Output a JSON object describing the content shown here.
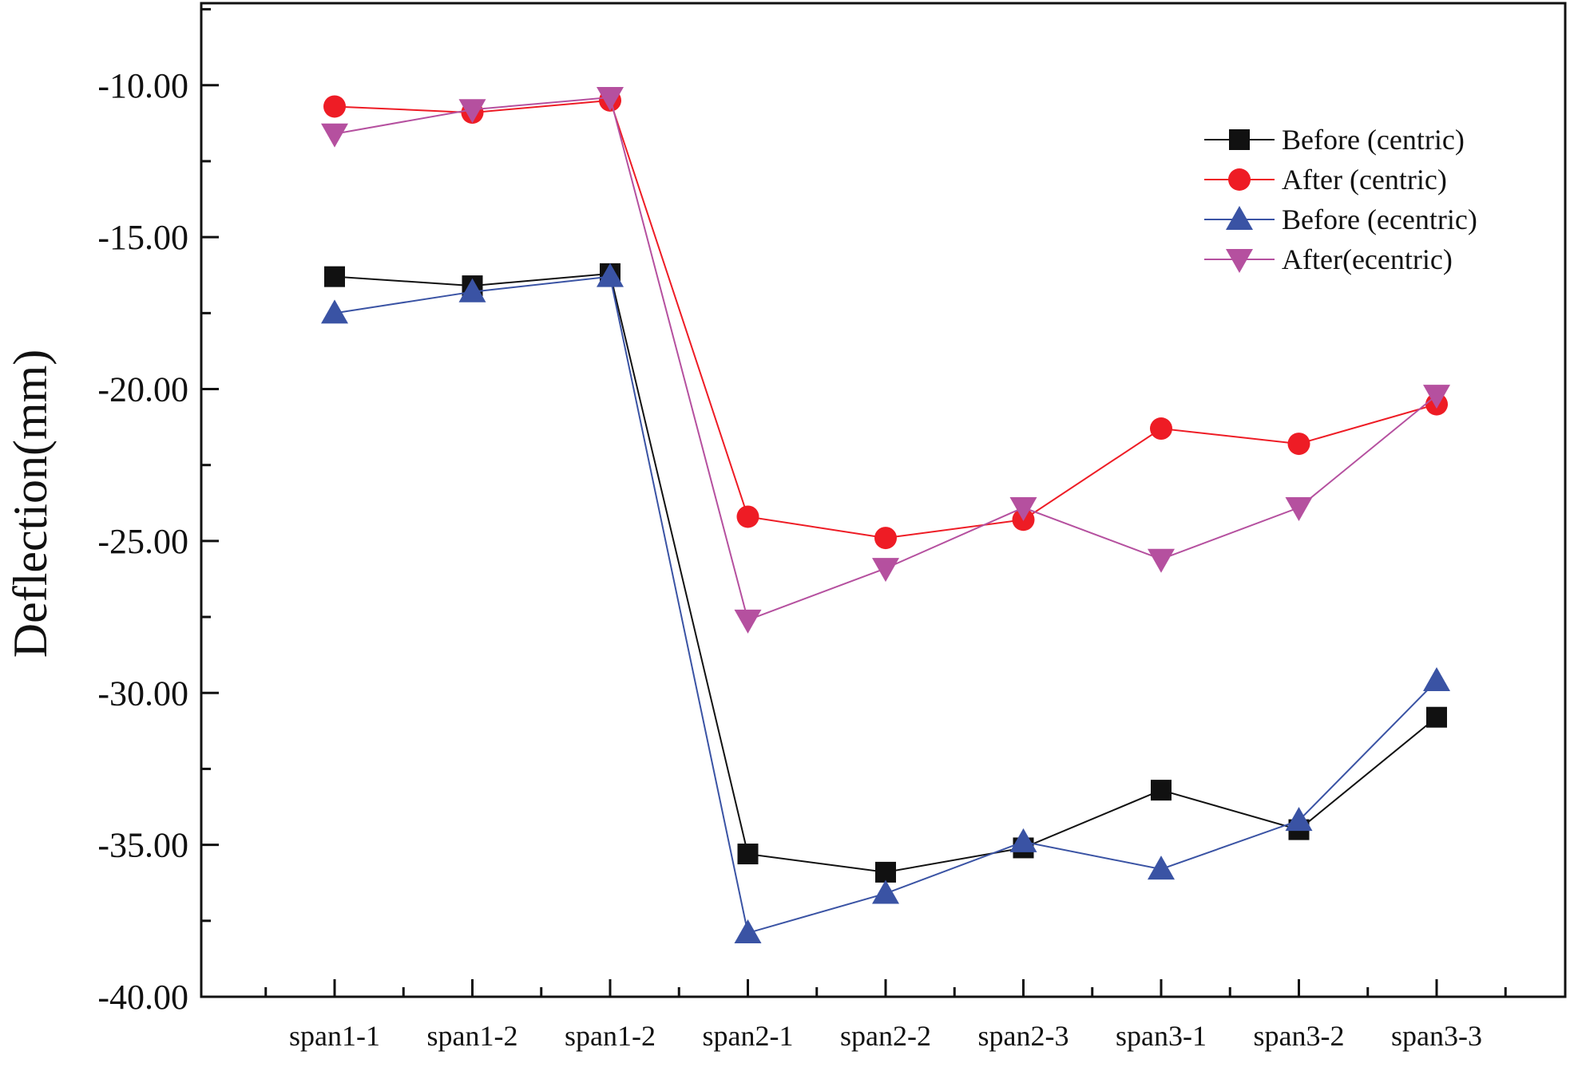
{
  "chart_data": {
    "type": "line",
    "title": "",
    "xlabel": "",
    "ylabel": "Deflection(mm)",
    "categories": [
      "span1-1",
      "span1-2",
      "span1-2",
      "span2-1",
      "span2-2",
      "span2-3",
      "span3-1",
      "span3-2",
      "span3-3"
    ],
    "ylim": [
      -40,
      -7.3
    ],
    "yticks": [
      -10,
      -15,
      -20,
      -25,
      -30,
      -35,
      -40
    ],
    "ytick_labels": [
      "-10.00",
      "-15.00",
      "-20.00",
      "-25.00",
      "-30.00",
      "-35.00",
      "-40.00"
    ],
    "grid": false,
    "legend_position": "top-right",
    "series": [
      {
        "name": "Before (centric)",
        "color": "#111111",
        "marker": "square",
        "values": [
          -16.3,
          -16.6,
          -16.2,
          -35.3,
          -35.9,
          -35.1,
          -33.2,
          -34.5,
          -30.8
        ]
      },
      {
        "name": "After (centric)",
        "color": "#ee1c25",
        "marker": "circle",
        "values": [
          -10.7,
          -10.9,
          -10.5,
          -24.2,
          -24.9,
          -24.3,
          -21.3,
          -21.8,
          -20.5
        ]
      },
      {
        "name": "Before (ecentric)",
        "color": "#3a53a4",
        "marker": "triangle-up",
        "values": [
          -17.5,
          -16.8,
          -16.3,
          -37.9,
          -36.6,
          -34.9,
          -35.8,
          -34.2,
          -29.6
        ]
      },
      {
        "name": "After(ecentric)",
        "color": "#b5509f",
        "marker": "triangle-down",
        "values": [
          -11.6,
          -10.8,
          -10.4,
          -27.6,
          -25.9,
          -23.9,
          -25.6,
          -23.9,
          -20.2
        ]
      }
    ]
  }
}
